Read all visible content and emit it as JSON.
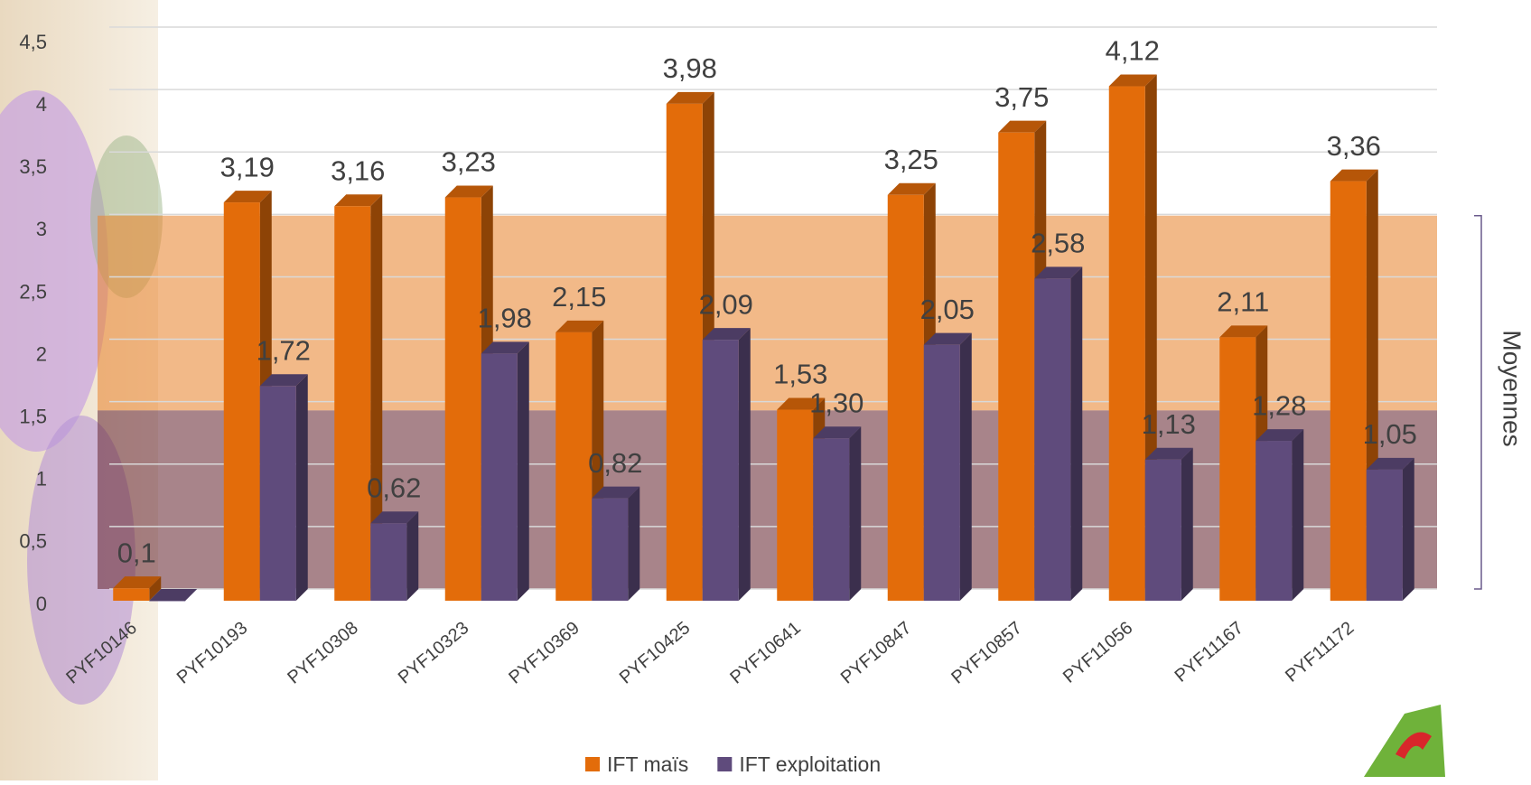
{
  "chart_data": {
    "type": "bar3d",
    "categories": [
      "PYF10146",
      "PYF10193",
      "PYF10308",
      "PYF10323",
      "PYF10369",
      "PYF10425",
      "PYF10641",
      "PYF10847",
      "PYF10857",
      "PYF11056",
      "PYF11167",
      "PYF11172"
    ],
    "series": [
      {
        "name": "IFT maïs",
        "color": "#e36c0a",
        "values": [
          0.1,
          3.19,
          3.16,
          3.23,
          2.15,
          3.98,
          1.53,
          3.25,
          3.75,
          4.12,
          2.11,
          3.36
        ],
        "value_labels": [
          "0,1",
          "3,19",
          "3,16",
          "3,23",
          "2,15",
          "3,98",
          "1,53",
          "3,25",
          "3,75",
          "4,12",
          "2,11",
          "3,36"
        ]
      },
      {
        "name": "IFT exploitation",
        "color": "#5f4b7c",
        "values": [
          0,
          1.72,
          0.62,
          1.98,
          0.82,
          2.09,
          1.3,
          2.05,
          2.58,
          1.13,
          1.28,
          1.05
        ],
        "value_labels": [
          null,
          "1,72",
          "0,62",
          "1,98",
          "0,82",
          "2,09",
          "1,30",
          "2,05",
          "2,58",
          "1,13",
          "1,28",
          "1,05"
        ]
      }
    ],
    "ylim": [
      0,
      4.5
    ],
    "yticks": [
      {
        "value": 0,
        "label": "0"
      },
      {
        "value": 0.5,
        "label": "0,5"
      },
      {
        "value": 1,
        "label": "1"
      },
      {
        "value": 1.5,
        "label": "1,5"
      },
      {
        "value": 2,
        "label": "2"
      },
      {
        "value": 2.5,
        "label": "2,5"
      },
      {
        "value": 3,
        "label": "3"
      },
      {
        "value": 3.5,
        "label": "3,5"
      },
      {
        "value": 4,
        "label": "4"
      },
      {
        "value": 4.5,
        "label": "4,5"
      }
    ],
    "grid": true,
    "bands": [
      {
        "from": 1.43,
        "to": 2.99,
        "color": "rgba(232,134,50,0.58)"
      },
      {
        "from": 0,
        "to": 1.43,
        "color": "rgba(110,50,60,0.6)"
      }
    ],
    "band_annotation": "Moyennes",
    "legend": "bottom"
  }
}
